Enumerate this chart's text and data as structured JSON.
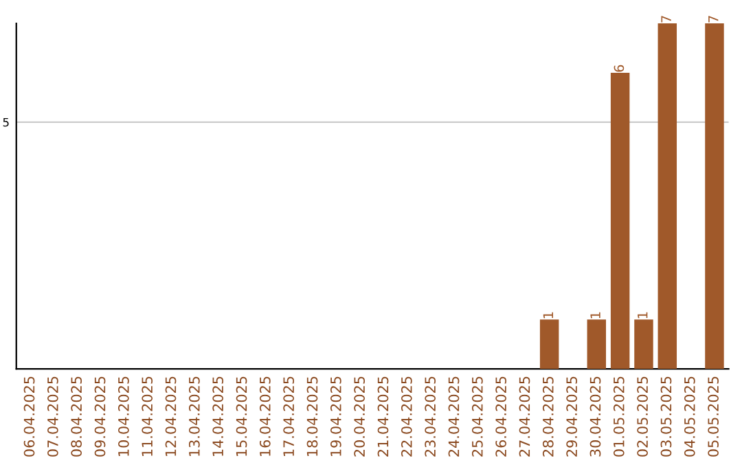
{
  "chart_data": {
    "type": "bar",
    "categories": [
      "06.04.2025",
      "07.04.2025",
      "08.04.2025",
      "09.04.2025",
      "10.04.2025",
      "11.04.2025",
      "12.04.2025",
      "13.04.2025",
      "14.04.2025",
      "15.04.2025",
      "16.04.2025",
      "17.04.2025",
      "18.04.2025",
      "19.04.2025",
      "20.04.2025",
      "21.04.2025",
      "22.04.2025",
      "23.04.2025",
      "24.04.2025",
      "25.04.2025",
      "26.04.2025",
      "27.04.2025",
      "28.04.2025",
      "29.04.2025",
      "30.04.2025",
      "01.05.2025",
      "02.05.2025",
      "03.05.2025",
      "04.05.2025",
      "05.05.2025"
    ],
    "values": [
      null,
      null,
      null,
      null,
      null,
      null,
      null,
      null,
      null,
      null,
      null,
      null,
      null,
      null,
      null,
      null,
      null,
      null,
      null,
      null,
      null,
      null,
      1,
      null,
      1,
      6,
      1,
      7,
      null,
      7
    ],
    "data_labels": true,
    "color": "#a0592a",
    "ylim": [
      0,
      7
    ],
    "yticks": [
      5
    ],
    "grid": "y",
    "legend": false
  }
}
